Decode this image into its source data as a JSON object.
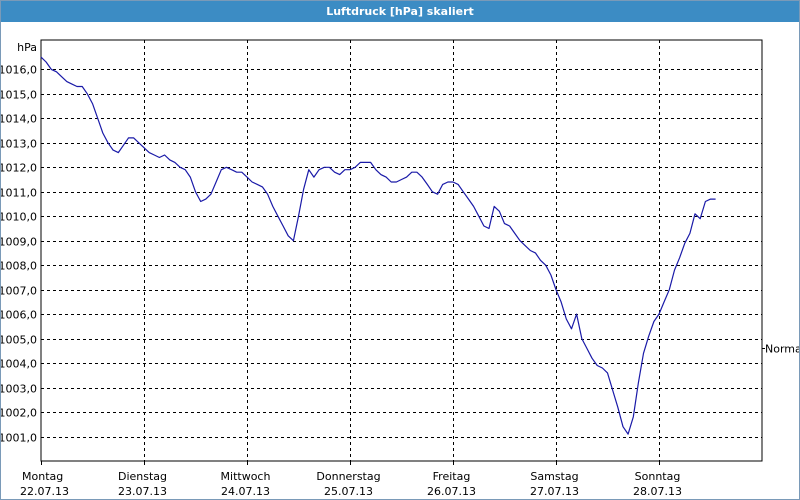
{
  "window": {
    "title": "Luftdruck [hPa] skaliert"
  },
  "chart_data": {
    "type": "line",
    "title": "Luftdruck [hPa] skaliert",
    "ylabel": "hPa",
    "xlabel": "",
    "ylim": [
      1000.0,
      1017.2
    ],
    "yticks": [
      1001.0,
      1002.0,
      1003.0,
      1004.0,
      1005.0,
      1006.0,
      1007.0,
      1008.0,
      1009.0,
      1010.0,
      1011.0,
      1012.0,
      1013.0,
      1014.0,
      1015.0,
      1016.0
    ],
    "ytick_labels": [
      "1001,0",
      "1002,0",
      "1003,0",
      "1004,0",
      "1005,0",
      "1006,0",
      "1007,0",
      "1008,0",
      "1009,0",
      "1010,0",
      "1011,0",
      "1012,0",
      "1013,0",
      "1014,0",
      "1015,0",
      "1016,0"
    ],
    "xlim": [
      0,
      7.15
    ],
    "days": [
      {
        "weekday": "Montag",
        "date": "22.07.13"
      },
      {
        "weekday": "Dienstag",
        "date": "23.07.13"
      },
      {
        "weekday": "Mittwoch",
        "date": "24.07.13"
      },
      {
        "weekday": "Donnerstag",
        "date": "25.07.13"
      },
      {
        "weekday": "Freitag",
        "date": "26.07.13"
      },
      {
        "weekday": "Samstag",
        "date": "27.07.13"
      },
      {
        "weekday": "Sonntag",
        "date": "28.07.13"
      }
    ],
    "reference_label": "Normal",
    "reference_value": 1004.6,
    "grid": true,
    "line_color": "#1a1aa8",
    "series": [
      {
        "values": [
          [
            0.0,
            1016.5
          ],
          [
            0.05,
            1016.3
          ],
          [
            0.1,
            1016.0
          ],
          [
            0.15,
            1015.9
          ],
          [
            0.2,
            1015.7
          ],
          [
            0.25,
            1015.5
          ],
          [
            0.3,
            1015.4
          ],
          [
            0.35,
            1015.3
          ],
          [
            0.4,
            1015.3
          ],
          [
            0.45,
            1015.0
          ],
          [
            0.5,
            1014.6
          ],
          [
            0.55,
            1014.0
          ],
          [
            0.6,
            1013.4
          ],
          [
            0.65,
            1013.0
          ],
          [
            0.7,
            1012.7
          ],
          [
            0.75,
            1012.6
          ],
          [
            0.8,
            1012.9
          ],
          [
            0.85,
            1013.2
          ],
          [
            0.9,
            1013.2
          ],
          [
            0.95,
            1013.0
          ],
          [
            1.0,
            1012.8
          ],
          [
            1.05,
            1012.6
          ],
          [
            1.1,
            1012.5
          ],
          [
            1.15,
            1012.4
          ],
          [
            1.2,
            1012.5
          ],
          [
            1.25,
            1012.3
          ],
          [
            1.3,
            1012.2
          ],
          [
            1.35,
            1012.0
          ],
          [
            1.4,
            1011.9
          ],
          [
            1.45,
            1011.6
          ],
          [
            1.5,
            1011.0
          ],
          [
            1.55,
            1010.6
          ],
          [
            1.6,
            1010.7
          ],
          [
            1.65,
            1010.9
          ],
          [
            1.7,
            1011.4
          ],
          [
            1.75,
            1011.9
          ],
          [
            1.8,
            1012.0
          ],
          [
            1.85,
            1011.9
          ],
          [
            1.9,
            1011.8
          ],
          [
            1.95,
            1011.8
          ],
          [
            2.0,
            1011.6
          ],
          [
            2.05,
            1011.4
          ],
          [
            2.1,
            1011.3
          ],
          [
            2.15,
            1011.2
          ],
          [
            2.2,
            1010.9
          ],
          [
            2.25,
            1010.4
          ],
          [
            2.3,
            1010.0
          ],
          [
            2.35,
            1009.6
          ],
          [
            2.4,
            1009.2
          ],
          [
            2.45,
            1009.0
          ],
          [
            2.5,
            1010.0
          ],
          [
            2.55,
            1011.1
          ],
          [
            2.6,
            1011.9
          ],
          [
            2.65,
            1011.6
          ],
          [
            2.7,
            1011.9
          ],
          [
            2.75,
            1012.0
          ],
          [
            2.8,
            1012.0
          ],
          [
            2.85,
            1011.8
          ],
          [
            2.9,
            1011.7
          ],
          [
            2.95,
            1011.9
          ],
          [
            3.0,
            1011.9
          ],
          [
            3.05,
            1012.0
          ],
          [
            3.1,
            1012.2
          ],
          [
            3.15,
            1012.2
          ],
          [
            3.2,
            1012.2
          ],
          [
            3.25,
            1011.9
          ],
          [
            3.3,
            1011.7
          ],
          [
            3.35,
            1011.6
          ],
          [
            3.4,
            1011.4
          ],
          [
            3.45,
            1011.4
          ],
          [
            3.5,
            1011.5
          ],
          [
            3.55,
            1011.6
          ],
          [
            3.6,
            1011.8
          ],
          [
            3.65,
            1011.8
          ],
          [
            3.7,
            1011.6
          ],
          [
            3.75,
            1011.3
          ],
          [
            3.8,
            1011.0
          ],
          [
            3.85,
            1010.9
          ],
          [
            3.9,
            1011.3
          ],
          [
            3.95,
            1011.4
          ],
          [
            4.0,
            1011.4
          ],
          [
            4.05,
            1011.3
          ],
          [
            4.1,
            1011.0
          ],
          [
            4.15,
            1010.7
          ],
          [
            4.2,
            1010.4
          ],
          [
            4.25,
            1010.0
          ],
          [
            4.3,
            1009.6
          ],
          [
            4.35,
            1009.5
          ],
          [
            4.4,
            1010.4
          ],
          [
            4.45,
            1010.2
          ],
          [
            4.5,
            1009.7
          ],
          [
            4.55,
            1009.6
          ],
          [
            4.6,
            1009.3
          ],
          [
            4.65,
            1009.0
          ],
          [
            4.7,
            1008.8
          ],
          [
            4.75,
            1008.6
          ],
          [
            4.8,
            1008.5
          ],
          [
            4.85,
            1008.2
          ],
          [
            4.9,
            1008.0
          ],
          [
            4.95,
            1007.6
          ],
          [
            5.0,
            1007.0
          ],
          [
            5.05,
            1006.5
          ],
          [
            5.1,
            1005.8
          ],
          [
            5.15,
            1005.4
          ],
          [
            5.2,
            1006.0
          ],
          [
            5.25,
            1005.0
          ],
          [
            5.3,
            1004.6
          ],
          [
            5.35,
            1004.2
          ],
          [
            5.4,
            1003.9
          ],
          [
            5.45,
            1003.8
          ],
          [
            5.5,
            1003.6
          ],
          [
            5.55,
            1002.9
          ],
          [
            5.6,
            1002.2
          ],
          [
            5.65,
            1001.4
          ],
          [
            5.7,
            1001.1
          ],
          [
            5.75,
            1001.8
          ],
          [
            5.8,
            1003.2
          ],
          [
            5.85,
            1004.4
          ],
          [
            5.9,
            1005.1
          ],
          [
            5.95,
            1005.7
          ],
          [
            6.0,
            1006.0
          ],
          [
            6.05,
            1006.5
          ],
          [
            6.1,
            1007.0
          ],
          [
            6.15,
            1007.8
          ],
          [
            6.2,
            1008.3
          ],
          [
            6.25,
            1008.9
          ],
          [
            6.3,
            1009.3
          ],
          [
            6.35,
            1010.1
          ],
          [
            6.4,
            1009.9
          ],
          [
            6.45,
            1010.6
          ],
          [
            6.5,
            1010.7
          ],
          [
            6.55,
            1010.7
          ]
        ]
      }
    ]
  }
}
